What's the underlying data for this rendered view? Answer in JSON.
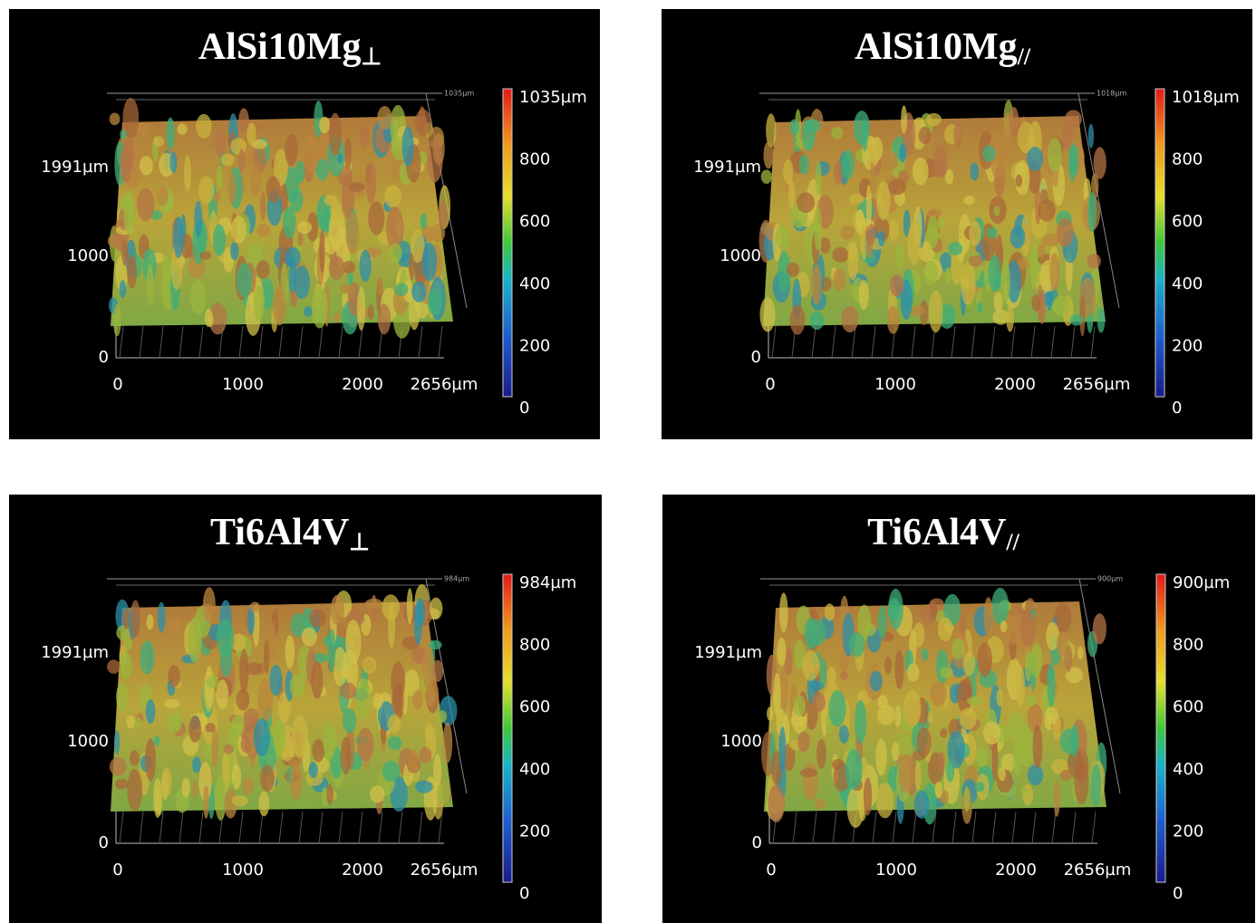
{
  "panels": [
    {
      "title": "AlSi10Mg",
      "subscript": "⊥",
      "corner_label": "1035µm",
      "y_labels": [
        "1991µm",
        "1000",
        "0"
      ],
      "x_labels": [
        "0",
        "1000",
        "2000",
        "2656µm"
      ],
      "colorbar_labels": [
        "1035µm",
        "800",
        "600",
        "400",
        "200",
        "0"
      ]
    },
    {
      "title": "AlSi10Mg",
      "subscript": "//",
      "corner_label": "1018µm",
      "y_labels": [
        "1991µm",
        "1000",
        "0"
      ],
      "x_labels": [
        "0",
        "1000",
        "2000",
        "2656µm"
      ],
      "colorbar_labels": [
        "1018µm",
        "800",
        "600",
        "400",
        "200",
        "0"
      ]
    },
    {
      "title": "Ti6Al4V",
      "subscript": "⊥",
      "corner_label": "984µm",
      "y_labels": [
        "1991µm",
        "1000",
        "0"
      ],
      "x_labels": [
        "0",
        "1000",
        "2000",
        "2656µm"
      ],
      "colorbar_labels": [
        "984µm",
        "800",
        "600",
        "400",
        "200",
        "0"
      ]
    },
    {
      "title": "Ti6Al4V",
      "subscript": "//",
      "corner_label": "900µm",
      "y_labels": [
        "1991µm",
        "1000",
        "0"
      ],
      "x_labels": [
        "0",
        "1000",
        "2000",
        "2656µm"
      ],
      "colorbar_labels": [
        "900µm",
        "800",
        "600",
        "400",
        "200",
        "0"
      ]
    }
  ]
}
